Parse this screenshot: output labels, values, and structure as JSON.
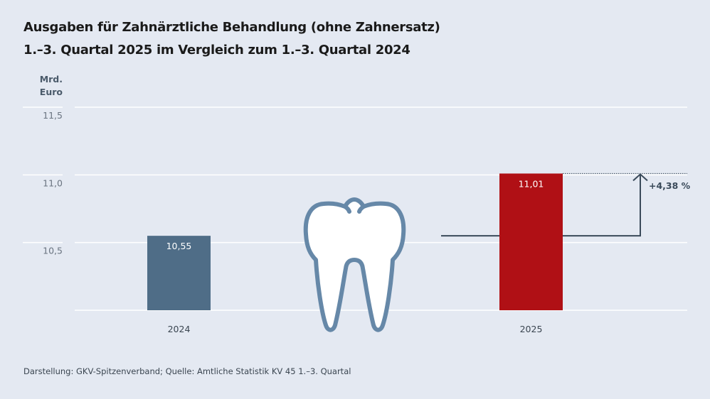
{
  "title_line1": "Ausgaben für Zahnärztliche Behandlung (ohne Zahnersatz)",
  "title_line2": "1.–3. Quartal 2025 im Vergleich zum 1.–3. Quartal 2024",
  "unit_line1": "Mrd.",
  "unit_line2": "Euro",
  "source": "Darstellung: GKV-Spitzenverband; Quelle: Amtliche Statistik KV 45 1.–3. Quartal",
  "icon": "tooth-icon",
  "colors": {
    "background": "#e4e9f2",
    "bar_2024": "#4f6d87",
    "bar_2025": "#b01015",
    "tooth_stroke": "#6688a8",
    "arrow": "#3a4a5a"
  },
  "chart_data": {
    "type": "bar",
    "categories": [
      "2024",
      "2025"
    ],
    "values": [
      10.55,
      11.01
    ],
    "value_labels": [
      "10,55",
      "11,01"
    ],
    "ylabel": "Mrd. Euro",
    "ylim": [
      10.0,
      11.5
    ],
    "yticks": [
      10.5,
      11.0,
      11.5
    ],
    "ytick_labels": [
      "10,5",
      "11,0",
      "11,5"
    ],
    "grid": true,
    "annotation": "+4,38 %"
  }
}
